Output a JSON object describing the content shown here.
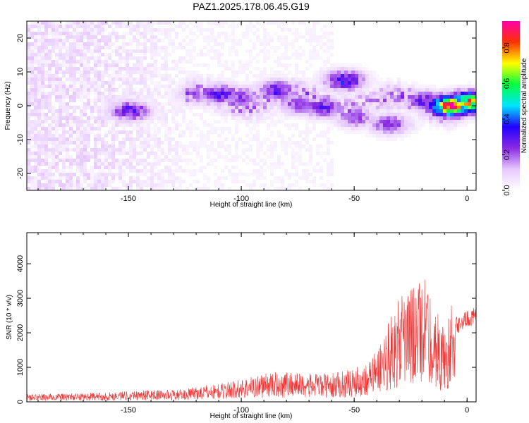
{
  "figure": {
    "title": "PAZ1.2025.178.06.45.G19"
  },
  "chart_data": [
    {
      "type": "heatmap",
      "xlabel": "Height of straight line (km)",
      "ylabel": "Frequency (Hz)",
      "xlim": [
        -195,
        4
      ],
      "ylim": [
        -25,
        25
      ],
      "xticks": [
        -150,
        -100,
        -50,
        0
      ],
      "yticks": [
        -20,
        -10,
        0,
        10,
        20
      ],
      "colorbar": {
        "label": "Normalized spectral amplitude",
        "range": [
          0,
          0.95
        ],
        "ticks": [
          0.0,
          0.2,
          0.4,
          0.6,
          0.8
        ],
        "colors": [
          "#ffffff",
          "#e6c8ff",
          "#8a2be2",
          "#2200ff",
          "#00e5ff",
          "#00ff40",
          "#ffff00",
          "#ff3300",
          "#ff00aa"
        ]
      },
      "ridges": [
        {
          "x": -150,
          "y": -1,
          "amp": 0.3
        },
        {
          "x": -120,
          "y": 4,
          "amp": 0.2
        },
        {
          "x": -110,
          "y": 4,
          "amp": 0.3
        },
        {
          "x": -100,
          "y": 3,
          "amp": 0.25
        },
        {
          "x": -85,
          "y": 5,
          "amp": 0.3
        },
        {
          "x": -75,
          "y": 1,
          "amp": 0.25
        },
        {
          "x": -65,
          "y": 0,
          "amp": 0.28
        },
        {
          "x": -55,
          "y": 8,
          "amp": 0.35
        },
        {
          "x": -50,
          "y": -3,
          "amp": 0.22
        },
        {
          "x": -35,
          "y": -5,
          "amp": 0.25
        },
        {
          "x": -20,
          "y": 2,
          "amp": 0.3
        },
        {
          "x": -8,
          "y": 0.5,
          "amp": 0.85
        },
        {
          "x": 0,
          "y": 1.5,
          "amp": 0.75
        }
      ]
    },
    {
      "type": "line",
      "xlabel": "Height of straight line (km)",
      "ylabel": "SNR (10 * v/v)",
      "xlim": [
        -195,
        4
      ],
      "ylim": [
        0,
        4900
      ],
      "xticks": [
        -150,
        -100,
        -50,
        0
      ],
      "yticks": [
        0,
        1000,
        2000,
        3000,
        4000
      ],
      "color": "#ee3333",
      "envelope": {
        "x": [
          -195,
          -160,
          -150,
          -125,
          -120,
          -110,
          -100,
          -90,
          -80,
          -70,
          -60,
          -50,
          -45,
          -40,
          -35,
          -30,
          -25,
          -20,
          -15,
          -10,
          -5,
          0,
          4
        ],
        "y": [
          150,
          180,
          220,
          240,
          300,
          350,
          450,
          550,
          600,
          550,
          550,
          650,
          750,
          1000,
          1600,
          2000,
          2200,
          2500,
          2000,
          1400,
          2200,
          2400,
          2500
        ]
      }
    }
  ]
}
